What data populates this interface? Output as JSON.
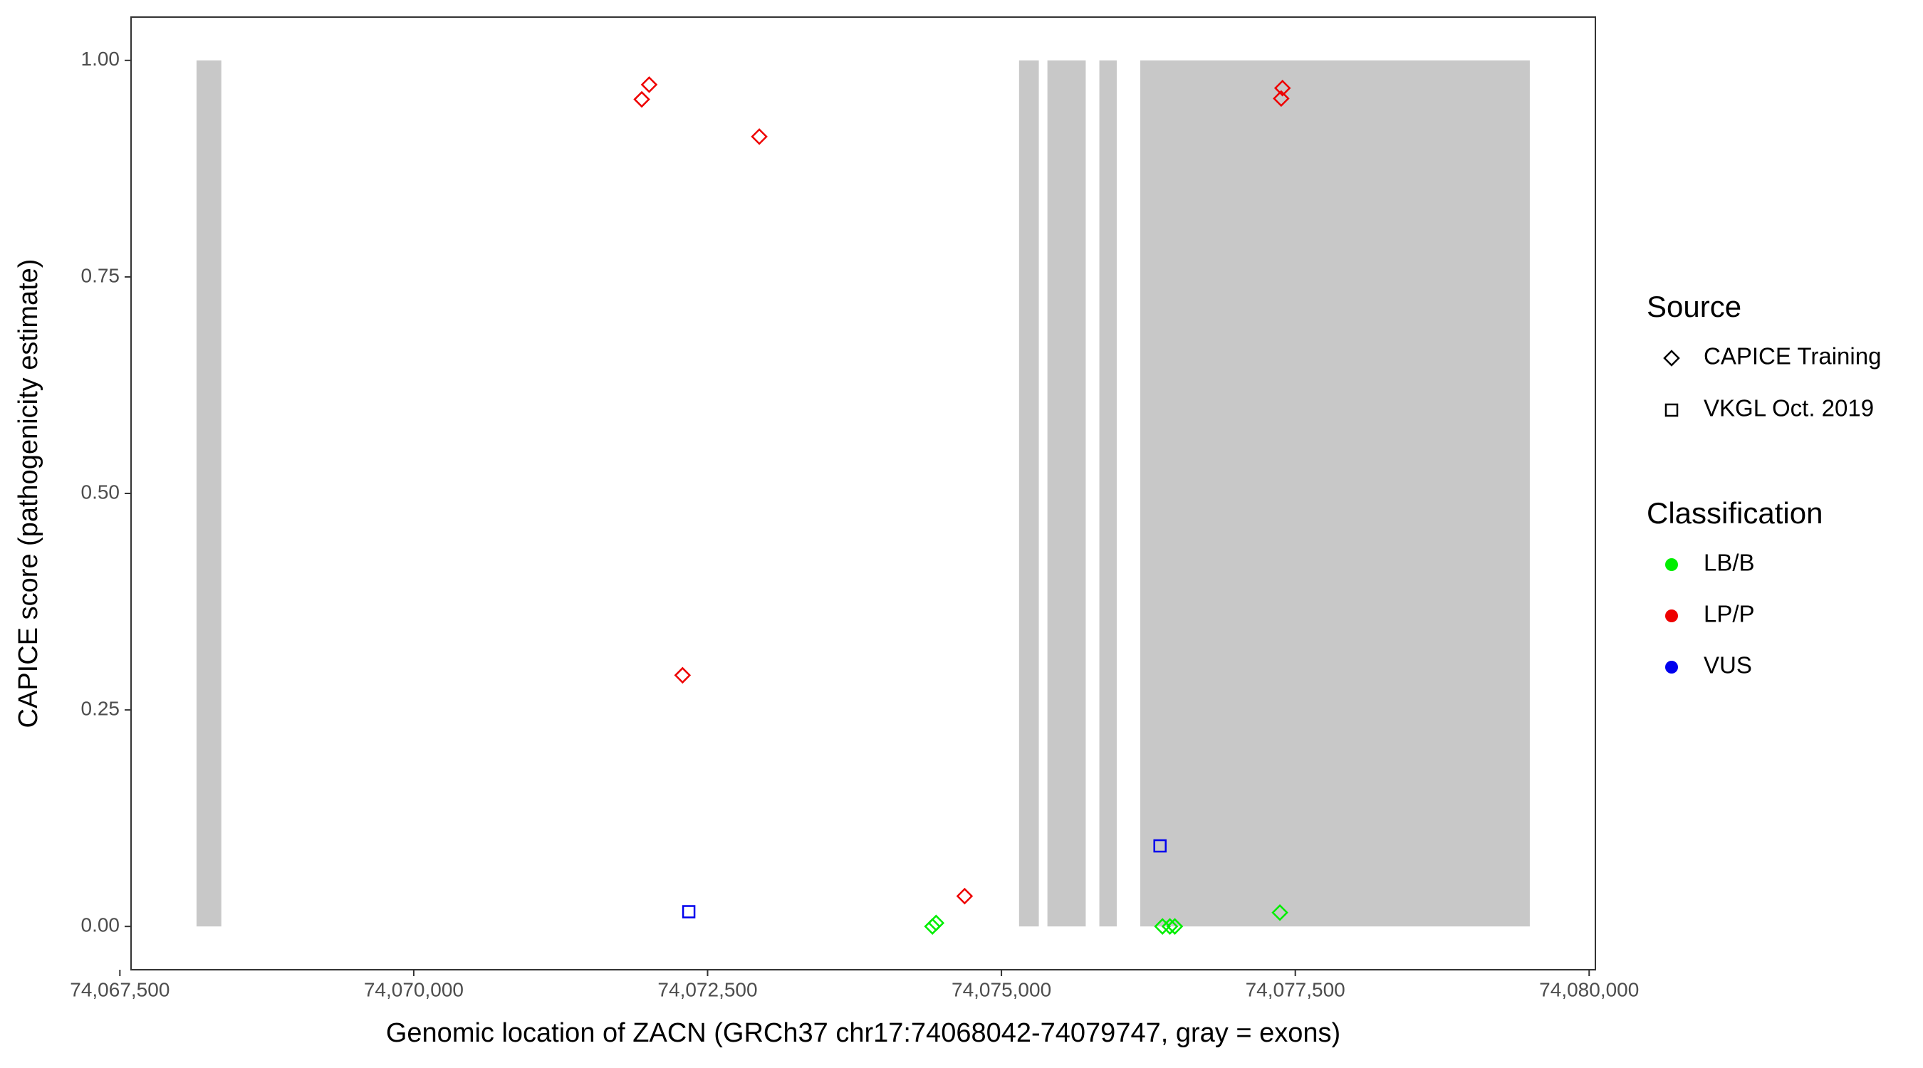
{
  "chart_data": {
    "type": "scatter",
    "x_label": "Genomic location of ZACN (GRCh37 chr17:74068042-74079747, gray = exons)",
    "y_label": "CAPICE score (pathogenicity estimate)",
    "xlim": [
      74067595,
      74080053
    ],
    "ylim": [
      -0.05,
      1.05
    ],
    "xticks": [
      {
        "value": 74067500,
        "label": "74,067,500"
      },
      {
        "value": 74070000,
        "label": "74,070,000"
      },
      {
        "value": 74072500,
        "label": "74,072,500"
      },
      {
        "value": 74075000,
        "label": "74,075,000"
      },
      {
        "value": 74077500,
        "label": "74,077,500"
      },
      {
        "value": 74080000,
        "label": "74,080,000"
      }
    ],
    "yticks": [
      {
        "value": 0,
        "label": "0.00"
      },
      {
        "value": 0.25,
        "label": "0.25"
      },
      {
        "value": 0.5,
        "label": "0.50"
      },
      {
        "value": 0.75,
        "label": "0.75"
      },
      {
        "value": 1,
        "label": "1.00"
      }
    ],
    "exons": {
      "color": "#c8c8c8",
      "starts": [
        74068152,
        74075150,
        74075391,
        74075833,
        74076181
      ],
      "ends": [
        74068363,
        74075318,
        74075717,
        74075981,
        74079495
      ]
    },
    "legend_source": {
      "title": "Source",
      "items": [
        {
          "label": "CAPICE Training",
          "shape": "diamond"
        },
        {
          "label": "VKGL Oct. 2019",
          "shape": "square"
        }
      ]
    },
    "legend_classification": {
      "title": "Classification",
      "items": [
        {
          "label": "LB/B",
          "color": "#00ee00"
        },
        {
          "label": "LP/P",
          "color": "#ee0000"
        },
        {
          "label": "VUS",
          "color": "#0000ee"
        }
      ]
    },
    "series": [
      {
        "shape": "diamond",
        "color": "#ee0000",
        "x": [
          74071940,
          74072003,
          74072940,
          74072287,
          74074687,
          74077380,
          74077391
        ],
        "values": [
          0.955,
          0.972,
          0.912,
          0.29,
          0.035,
          0.956,
          0.968
        ]
      },
      {
        "shape": "diamond",
        "color": "#00ee00",
        "x": [
          74074413,
          74074444,
          74076370,
          74076433,
          74076475,
          74077369
        ],
        "values": [
          0.0,
          0.004,
          0.0,
          0.0,
          0.0,
          0.016
        ]
      },
      {
        "shape": "square",
        "color": "#0000ee",
        "x": [
          74072340,
          74076349
        ],
        "values": [
          0.017,
          0.093
        ]
      }
    ]
  }
}
